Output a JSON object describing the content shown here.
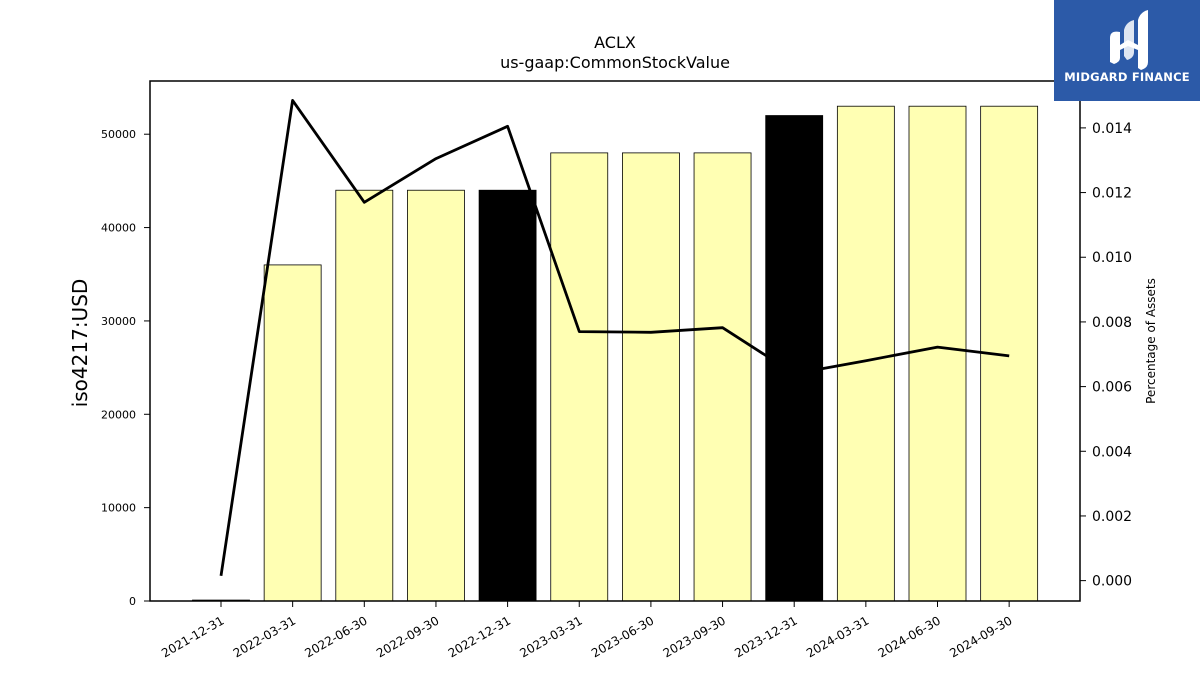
{
  "chart_data": {
    "type": "bar",
    "title": "ACLX",
    "subtitle": "us-gaap:CommonStockValue",
    "ylabel": "iso4217:USD",
    "y2label": "Percentage of Assets",
    "categories": [
      "2021-12-31",
      "2022-03-31",
      "2022-06-30",
      "2022-09-30",
      "2022-12-31",
      "2023-03-31",
      "2023-06-30",
      "2023-09-30",
      "2023-12-31",
      "2024-03-31",
      "2024-06-30",
      "2024-09-30"
    ],
    "values": [
      100,
      36000,
      44000,
      44000,
      44000,
      48000,
      48000,
      48000,
      52000,
      53000,
      53000,
      53000
    ],
    "bar_colors": [
      "#ffffb3",
      "#ffffb3",
      "#ffffb3",
      "#ffffb3",
      "#000000",
      "#ffffb3",
      "#ffffb3",
      "#ffffb3",
      "#000000",
      "#ffffb3",
      "#ffffb3",
      "#ffffb3"
    ],
    "line_values": [
      0.00015,
      0.01485,
      0.0117,
      0.01305,
      0.01405,
      0.0077,
      0.00768,
      0.00782,
      0.0064,
      0.0068,
      0.00722,
      0.00695
    ],
    "line_color": "#000000",
    "ylim": [
      0,
      55700
    ],
    "y2lim": [
      -0.00063,
      0.01545
    ],
    "yticks": [
      0,
      10000,
      20000,
      30000,
      40000,
      50000
    ],
    "y2ticks": [
      0.0,
      0.002,
      0.004,
      0.006,
      0.008,
      0.01,
      0.012,
      0.014
    ],
    "y2tick_labels": [
      "0.000",
      "0.002",
      "0.004",
      "0.006",
      "0.008",
      "0.010",
      "0.012",
      "0.014"
    ],
    "grid": false
  },
  "logo": {
    "text": "MIDGARD FINANCE",
    "background": "#2c5aa8"
  }
}
